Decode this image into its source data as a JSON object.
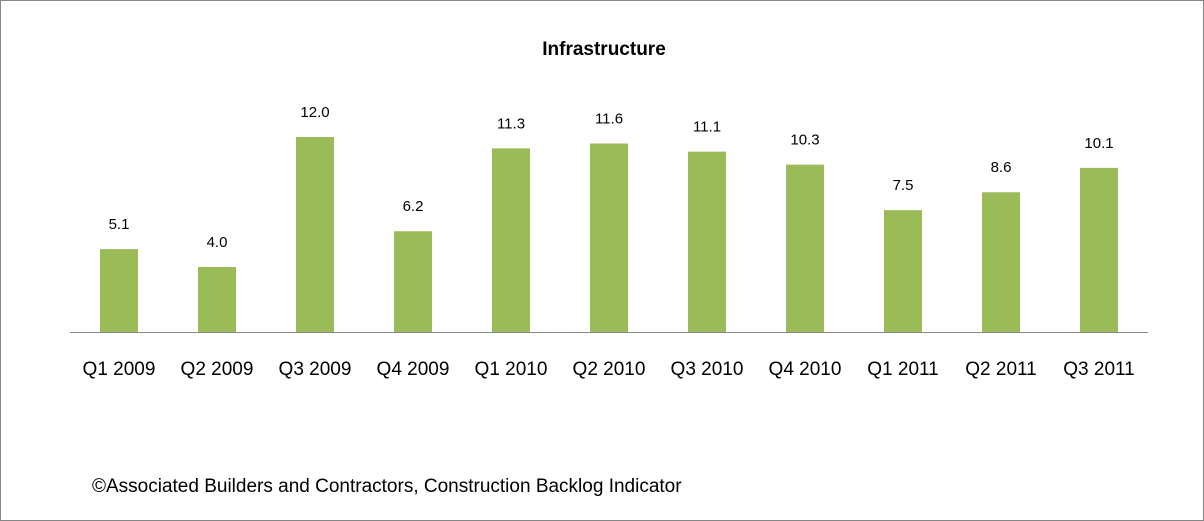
{
  "chart_data": {
    "type": "bar",
    "title": "Infrastructure",
    "categories": [
      "Q1 2009",
      "Q2 2009",
      "Q3 2009",
      "Q4 2009",
      "Q1 2010",
      "Q2 2010",
      "Q3 2010",
      "Q4 2010",
      "Q1 2011",
      "Q2 2011",
      "Q3 2011"
    ],
    "values": [
      5.1,
      4.0,
      12.0,
      6.2,
      11.3,
      11.6,
      11.1,
      10.3,
      7.5,
      8.6,
      10.1
    ],
    "value_labels": [
      "5.1",
      "4.0",
      "12.0",
      "6.2",
      "11.3",
      "11.6",
      "11.1",
      "10.3",
      "7.5",
      "8.6",
      "10.1"
    ],
    "color": "#9bbb59",
    "source": "©Associated Builders and Contractors, Construction Backlog Indicator"
  }
}
